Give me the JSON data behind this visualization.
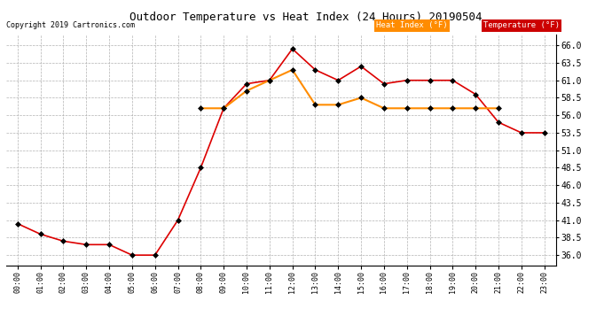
{
  "title": "Outdoor Temperature vs Heat Index (24 Hours) 20190504",
  "copyright": "Copyright 2019 Cartronics.com",
  "hours": [
    "00:00",
    "01:00",
    "02:00",
    "03:00",
    "04:00",
    "05:00",
    "06:00",
    "07:00",
    "08:00",
    "09:00",
    "10:00",
    "11:00",
    "12:00",
    "13:00",
    "14:00",
    "15:00",
    "16:00",
    "17:00",
    "18:00",
    "19:00",
    "20:00",
    "21:00",
    "22:00",
    "23:00"
  ],
  "temperature": [
    40.5,
    39.0,
    38.0,
    37.5,
    37.5,
    36.0,
    36.0,
    41.0,
    48.5,
    57.0,
    60.5,
    61.0,
    65.5,
    62.5,
    61.0,
    63.0,
    60.5,
    61.0,
    61.0,
    61.0,
    59.0,
    55.0,
    53.5,
    53.5
  ],
  "heat_index": [
    null,
    null,
    null,
    null,
    null,
    null,
    null,
    null,
    57.0,
    57.0,
    59.5,
    61.0,
    62.5,
    57.5,
    57.5,
    58.5,
    57.0,
    57.0,
    57.0,
    57.0,
    57.0,
    57.0,
    null,
    null
  ],
  "temp_color": "#dd0000",
  "heat_color": "#ff8c00",
  "ylim": [
    34.5,
    67.5
  ],
  "yticks": [
    36.0,
    38.5,
    41.0,
    43.5,
    46.0,
    48.5,
    51.0,
    53.5,
    56.0,
    58.5,
    61.0,
    63.5,
    66.0
  ],
  "bg_color": "#ffffff",
  "plot_bg": "#ffffff",
  "grid_color": "#aaaaaa",
  "legend_heat_bg": "#ff8c00",
  "legend_temp_bg": "#cc0000",
  "legend_text_color": "#ffffff"
}
